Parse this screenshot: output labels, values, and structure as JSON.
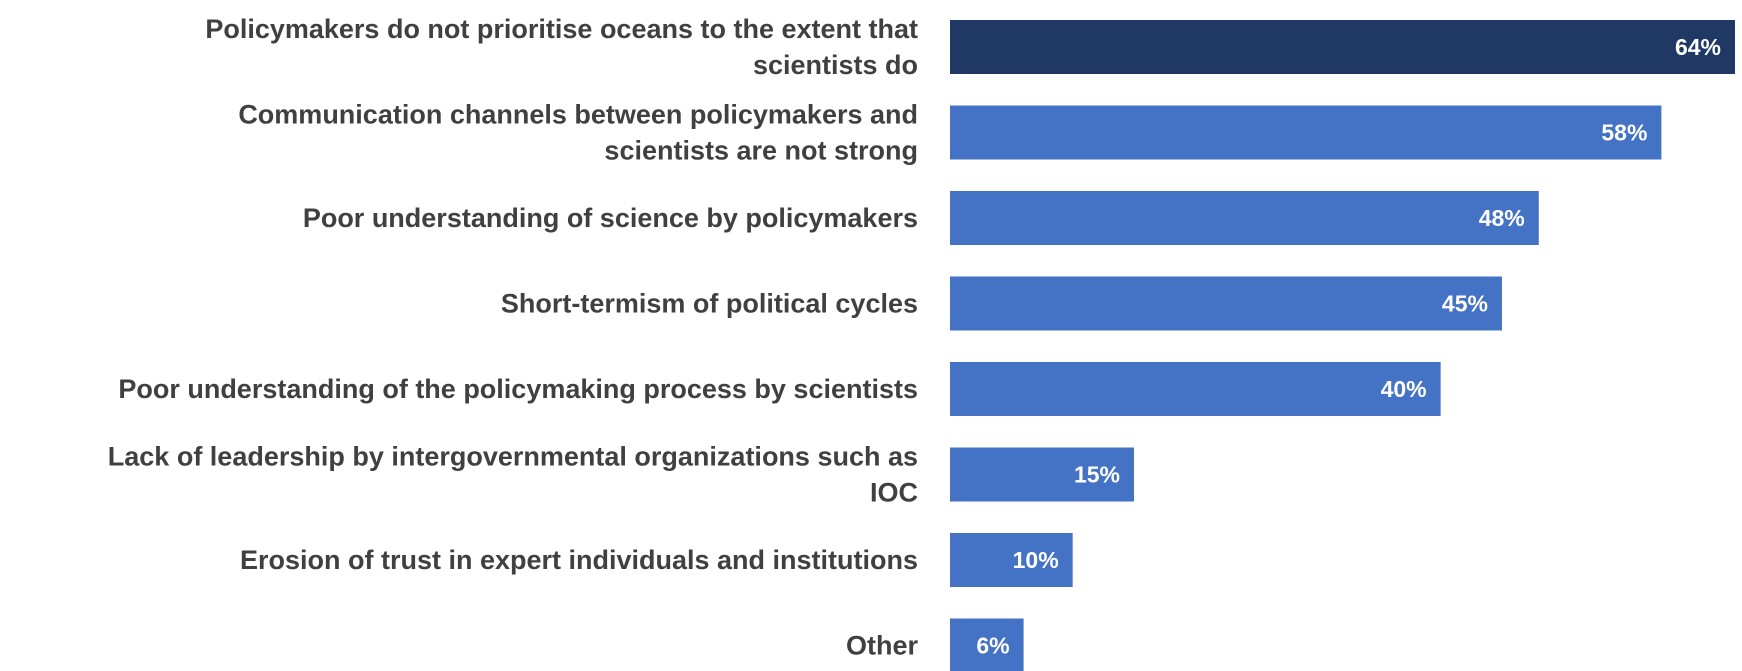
{
  "chart_data": {
    "type": "bar",
    "orientation": "horizontal",
    "title": "",
    "xlabel": "",
    "ylabel": "",
    "xlim": [
      0,
      64
    ],
    "grid": false,
    "legend": "none",
    "categories": [
      [
        "Policymakers do not prioritise oceans to the extent that",
        "scientists do"
      ],
      [
        "Communication channels between policymakers and",
        "scientists are not strong"
      ],
      [
        "Poor understanding of science by policymakers"
      ],
      [
        "Short-termism of political cycles"
      ],
      [
        "Poor understanding of the policymaking process by scientists"
      ],
      [
        "Lack of leadership by intergovernmental organizations such as",
        "IOC"
      ],
      [
        "Erosion of trust in expert individuals and institutions"
      ],
      [
        "Other"
      ]
    ],
    "values": [
      64,
      58,
      48,
      45,
      40,
      15,
      10,
      6
    ],
    "value_labels": [
      "64%",
      "58%",
      "48%",
      "45%",
      "40%",
      "15%",
      "10%",
      "6%"
    ],
    "colors": {
      "highlight": "#1f3864",
      "bar": "#4472c4",
      "label": "#404040",
      "value_label": "#ffffff"
    },
    "highlight_index": 0
  }
}
